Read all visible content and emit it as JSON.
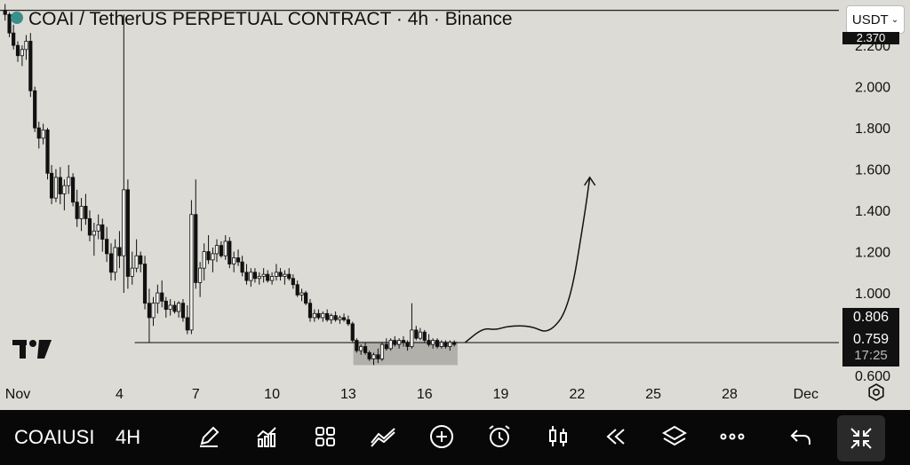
{
  "header": {
    "title": "COAI / TetherUS PERPETUAL CONTRACT · 4h · Binance",
    "currency": "USDT"
  },
  "toolbar": {
    "symbol": "COAIUSI",
    "interval": "4H"
  },
  "price_labels": {
    "top": "2.370",
    "upper": "0.806",
    "current": "0.759",
    "countdown": "17:25"
  },
  "chart_data": {
    "type": "candlestick",
    "title": "COAI / TetherUS PERPETUAL CONTRACT · 4h · Binance",
    "y_ticks": [
      "2.200",
      "2.000",
      "1.800",
      "1.600",
      "1.400",
      "1.200",
      "1.000",
      "0.600"
    ],
    "x_ticks": [
      "Nov",
      "4",
      "7",
      "10",
      "13",
      "16",
      "19",
      "22",
      "25",
      "28",
      "Dec"
    ],
    "ylim": [
      0.57,
      2.42
    ],
    "xlim": [
      -0.7,
      32.3
    ],
    "support_level": 0.759,
    "resistance_level": 2.37,
    "support_zone": {
      "x_start": 13.2,
      "x_end": 17.3,
      "low": 0.65,
      "high": 0.765
    },
    "projection_path": [
      [
        17.6,
        0.76
      ],
      [
        18.3,
        0.83
      ],
      [
        18.8,
        0.82
      ],
      [
        19.3,
        0.84
      ],
      [
        20.2,
        0.84
      ],
      [
        20.9,
        0.8
      ],
      [
        21.7,
        0.93
      ],
      [
        22.3,
        1.38
      ],
      [
        22.5,
        1.56
      ]
    ],
    "candles": [
      [
        -0.5,
        2.37,
        2.4,
        2.32,
        2.35
      ],
      [
        -0.33,
        2.35,
        2.36,
        2.24,
        2.26
      ],
      [
        -0.17,
        2.26,
        2.3,
        2.18,
        2.2
      ],
      [
        0,
        2.2,
        2.22,
        2.12,
        2.15
      ],
      [
        0.17,
        2.15,
        2.2,
        2.1,
        2.18
      ],
      [
        0.33,
        2.18,
        2.25,
        2.13,
        2.22
      ],
      [
        0.5,
        2.22,
        2.26,
        1.95,
        1.98
      ],
      [
        0.67,
        1.98,
        2.0,
        1.78,
        1.8
      ],
      [
        0.83,
        1.8,
        1.83,
        1.7,
        1.75
      ],
      [
        1,
        1.75,
        1.82,
        1.72,
        1.79
      ],
      [
        1.17,
        1.79,
        1.8,
        1.55,
        1.58
      ],
      [
        1.33,
        1.58,
        1.62,
        1.43,
        1.46
      ],
      [
        1.5,
        1.46,
        1.6,
        1.44,
        1.56
      ],
      [
        1.67,
        1.56,
        1.61,
        1.43,
        1.48
      ],
      [
        1.83,
        1.48,
        1.55,
        1.4,
        1.52
      ],
      [
        2,
        1.52,
        1.62,
        1.48,
        1.56
      ],
      [
        2.17,
        1.56,
        1.58,
        1.42,
        1.44
      ],
      [
        2.33,
        1.44,
        1.5,
        1.32,
        1.36
      ],
      [
        2.5,
        1.36,
        1.46,
        1.3,
        1.42
      ],
      [
        2.67,
        1.42,
        1.48,
        1.33,
        1.36
      ],
      [
        2.83,
        1.36,
        1.4,
        1.25,
        1.28
      ],
      [
        3,
        1.28,
        1.34,
        1.18,
        1.3
      ],
      [
        3.17,
        1.3,
        1.38,
        1.26,
        1.33
      ],
      [
        3.33,
        1.33,
        1.36,
        1.2,
        1.26
      ],
      [
        3.5,
        1.26,
        1.32,
        1.15,
        1.19
      ],
      [
        3.67,
        1.19,
        1.24,
        1.06,
        1.1
      ],
      [
        3.83,
        1.1,
        1.26,
        1.06,
        1.22
      ],
      [
        4,
        1.22,
        1.3,
        1.12,
        1.18
      ],
      [
        4.17,
        1.18,
        2.35,
        1.0,
        1.5
      ],
      [
        4.33,
        1.5,
        1.55,
        1.02,
        1.08
      ],
      [
        4.5,
        1.08,
        1.2,
        1.04,
        1.12
      ],
      [
        4.67,
        1.12,
        1.26,
        1.1,
        1.18
      ],
      [
        4.83,
        1.18,
        1.2,
        1.1,
        1.14
      ],
      [
        5,
        1.14,
        1.18,
        0.92,
        0.95
      ],
      [
        5.17,
        0.95,
        1.02,
        0.76,
        0.88
      ],
      [
        5.33,
        0.88,
        0.98,
        0.84,
        0.95
      ],
      [
        5.5,
        0.95,
        1.04,
        0.9,
        1.0
      ],
      [
        5.67,
        1.0,
        1.06,
        0.93,
        0.96
      ],
      [
        5.83,
        0.96,
        0.98,
        0.88,
        0.92
      ],
      [
        6,
        0.92,
        0.97,
        0.89,
        0.94
      ],
      [
        6.17,
        0.94,
        0.96,
        0.9,
        0.91
      ],
      [
        6.33,
        0.91,
        0.96,
        0.88,
        0.95
      ],
      [
        6.5,
        0.95,
        0.97,
        0.86,
        0.88
      ],
      [
        6.67,
        0.88,
        0.94,
        0.8,
        0.82
      ],
      [
        6.83,
        0.82,
        1.45,
        0.8,
        1.38
      ],
      [
        7,
        1.38,
        1.55,
        1.02,
        1.05
      ],
      [
        7.17,
        1.05,
        1.15,
        0.98,
        1.12
      ],
      [
        7.33,
        1.12,
        1.24,
        1.06,
        1.2
      ],
      [
        7.5,
        1.2,
        1.28,
        1.14,
        1.16
      ],
      [
        7.67,
        1.16,
        1.22,
        1.1,
        1.19
      ],
      [
        7.83,
        1.19,
        1.26,
        1.15,
        1.23
      ],
      [
        8,
        1.23,
        1.25,
        1.17,
        1.18
      ],
      [
        8.17,
        1.18,
        1.28,
        1.16,
        1.25
      ],
      [
        8.33,
        1.25,
        1.27,
        1.12,
        1.14
      ],
      [
        8.5,
        1.14,
        1.2,
        1.1,
        1.17
      ],
      [
        8.67,
        1.17,
        1.21,
        1.13,
        1.15
      ],
      [
        8.83,
        1.15,
        1.18,
        1.08,
        1.1
      ],
      [
        9,
        1.1,
        1.14,
        1.04,
        1.06
      ],
      [
        9.17,
        1.06,
        1.12,
        1.03,
        1.1
      ],
      [
        9.33,
        1.1,
        1.12,
        1.05,
        1.07
      ],
      [
        9.5,
        1.07,
        1.1,
        1.04,
        1.08
      ],
      [
        9.67,
        1.08,
        1.12,
        1.05,
        1.09
      ],
      [
        9.83,
        1.09,
        1.11,
        1.05,
        1.06
      ],
      [
        10,
        1.06,
        1.1,
        1.04,
        1.08
      ],
      [
        10.17,
        1.08,
        1.14,
        1.06,
        1.1
      ],
      [
        10.33,
        1.1,
        1.12,
        1.06,
        1.08
      ],
      [
        10.5,
        1.08,
        1.11,
        1.04,
        1.09
      ],
      [
        10.67,
        1.09,
        1.12,
        1.06,
        1.07
      ],
      [
        10.83,
        1.07,
        1.09,
        1.02,
        1.04
      ],
      [
        11,
        1.04,
        1.06,
        0.98,
        0.99
      ],
      [
        11.17,
        0.99,
        1.02,
        0.96,
        1.0
      ],
      [
        11.33,
        1.0,
        1.01,
        0.94,
        0.95
      ],
      [
        11.5,
        0.95,
        0.97,
        0.86,
        0.88
      ],
      [
        11.67,
        0.88,
        0.92,
        0.86,
        0.9
      ],
      [
        11.83,
        0.9,
        0.92,
        0.87,
        0.88
      ],
      [
        12,
        0.88,
        0.91,
        0.86,
        0.9
      ],
      [
        12.17,
        0.9,
        0.92,
        0.86,
        0.87
      ],
      [
        12.33,
        0.87,
        0.9,
        0.85,
        0.89
      ],
      [
        12.5,
        0.89,
        0.91,
        0.86,
        0.87
      ],
      [
        12.67,
        0.87,
        0.89,
        0.85,
        0.88
      ],
      [
        12.83,
        0.88,
        0.9,
        0.86,
        0.87
      ],
      [
        13,
        0.87,
        0.89,
        0.84,
        0.85
      ],
      [
        13.17,
        0.85,
        0.86,
        0.76,
        0.77
      ],
      [
        13.33,
        0.77,
        0.78,
        0.71,
        0.72
      ],
      [
        13.5,
        0.72,
        0.75,
        0.7,
        0.74
      ],
      [
        13.67,
        0.74,
        0.76,
        0.7,
        0.71
      ],
      [
        13.83,
        0.71,
        0.72,
        0.67,
        0.68
      ],
      [
        14,
        0.68,
        0.71,
        0.65,
        0.7
      ],
      [
        14.17,
        0.7,
        0.73,
        0.66,
        0.68
      ],
      [
        14.33,
        0.68,
        0.76,
        0.67,
        0.75
      ],
      [
        14.5,
        0.75,
        0.78,
        0.72,
        0.73
      ],
      [
        14.67,
        0.73,
        0.78,
        0.72,
        0.77
      ],
      [
        14.83,
        0.77,
        0.79,
        0.74,
        0.75
      ],
      [
        15,
        0.75,
        0.78,
        0.73,
        0.77
      ],
      [
        15.17,
        0.77,
        0.79,
        0.74,
        0.76
      ],
      [
        15.33,
        0.76,
        0.77,
        0.72,
        0.74
      ],
      [
        15.5,
        0.74,
        0.95,
        0.73,
        0.82
      ],
      [
        15.67,
        0.82,
        0.84,
        0.77,
        0.78
      ],
      [
        15.83,
        0.78,
        0.83,
        0.77,
        0.81
      ],
      [
        16,
        0.81,
        0.82,
        0.76,
        0.77
      ],
      [
        16.17,
        0.77,
        0.8,
        0.74,
        0.75
      ],
      [
        16.33,
        0.75,
        0.78,
        0.73,
        0.77
      ],
      [
        16.5,
        0.77,
        0.78,
        0.73,
        0.74
      ],
      [
        16.67,
        0.74,
        0.77,
        0.73,
        0.76
      ],
      [
        16.83,
        0.76,
        0.77,
        0.73,
        0.74
      ],
      [
        17,
        0.74,
        0.77,
        0.72,
        0.76
      ],
      [
        17.17,
        0.76,
        0.77,
        0.74,
        0.75
      ]
    ]
  }
}
